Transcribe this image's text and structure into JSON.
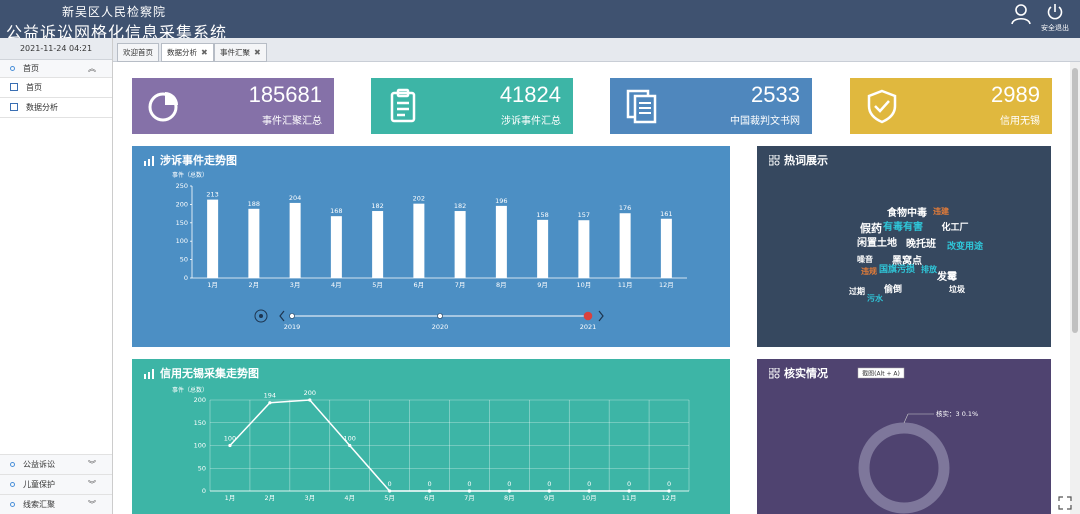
{
  "header": {
    "org": "新吴区人民检察院",
    "title": "公益诉讼网格化信息采集系统",
    "logout_label": "安全退出"
  },
  "sidebar": {
    "datetime": "2021-11-24 04:21",
    "top_section": "首页",
    "items": [
      "首页",
      "数据分析"
    ],
    "bottom_sections": [
      "公益诉讼",
      "儿童保护",
      "线索汇聚"
    ]
  },
  "tabs": [
    "欢迎首页",
    "数据分析",
    "事件汇聚"
  ],
  "stats": [
    {
      "value": "185681",
      "label": "事件汇聚汇总",
      "color": "#8571a8",
      "icon": "pie-chart-icon"
    },
    {
      "value": "41824",
      "label": "涉诉事件汇总",
      "color": "#3db5a6",
      "icon": "clipboard-icon"
    },
    {
      "value": "2533",
      "label": "中国裁判文书网",
      "color": "#4f87bd",
      "icon": "documents-icon"
    },
    {
      "value": "2989",
      "label": "信用无锡",
      "color": "#e0b83e",
      "icon": "shield-check-icon"
    }
  ],
  "panels": {
    "lawsuit_title": "涉诉事件走势图",
    "credit_title": "信用无锡采集走势图",
    "hotwords_title": "热词展示",
    "verify_title": "核实情况"
  },
  "chart_data": [
    {
      "type": "bar",
      "title": "涉诉事件走势图",
      "ylabel": "事件（总数）",
      "categories": [
        "1月",
        "2月",
        "3月",
        "4月",
        "5月",
        "6月",
        "7月",
        "8月",
        "9月",
        "10月",
        "11月",
        "12月"
      ],
      "values": [
        213,
        188,
        204,
        168,
        182,
        202,
        182,
        196,
        158,
        157,
        176,
        161
      ],
      "ylim": [
        0,
        250
      ],
      "yticks": [
        0,
        50,
        100,
        150,
        200,
        250
      ],
      "timeline": {
        "years": [
          "2019",
          "2020",
          "2021"
        ],
        "selected": "2021"
      },
      "grid": false
    },
    {
      "type": "line",
      "title": "信用无锡采集走势图",
      "ylabel": "事件（总数）",
      "categories": [
        "1月",
        "2月",
        "3月",
        "4月",
        "5月",
        "6月",
        "7月",
        "8月",
        "9月",
        "10月",
        "11月",
        "12月"
      ],
      "values": [
        100,
        194,
        200,
        100,
        0,
        0,
        0,
        0,
        0,
        0,
        0,
        0
      ],
      "ylim": [
        0,
        200
      ],
      "yticks": [
        0,
        50,
        100,
        150,
        200
      ],
      "grid": true
    },
    {
      "type": "pie",
      "title": "核实情况",
      "slices": [
        {
          "label": "核实",
          "value": 3,
          "percent": "0.1%"
        }
      ],
      "tooltip": "截图(Alt + A)"
    }
  ],
  "hotwords": [
    {
      "text": "假药",
      "color": "#ffffff",
      "size": 11
    },
    {
      "text": "食物中毒",
      "color": "#ffffff",
      "size": 10
    },
    {
      "text": "有毒有害",
      "color": "#2fc6d8",
      "size": 10
    },
    {
      "text": "化工厂",
      "color": "#ffffff",
      "size": 9
    },
    {
      "text": "闲置土地",
      "color": "#ffffff",
      "size": 10
    },
    {
      "text": "晚托班",
      "color": "#ffffff",
      "size": 10
    },
    {
      "text": "黑窝点",
      "color": "#ffffff",
      "size": 10
    },
    {
      "text": "改变用途",
      "color": "#2fc6d8",
      "size": 9
    },
    {
      "text": "国旗污损",
      "color": "#2fc6d8",
      "size": 9
    },
    {
      "text": "发霉",
      "color": "#ffffff",
      "size": 10
    },
    {
      "text": "偷倒",
      "color": "#ffffff",
      "size": 9
    },
    {
      "text": "违规",
      "color": "#e07b39",
      "size": 8
    },
    {
      "text": "过期",
      "color": "#ffffff",
      "size": 8
    },
    {
      "text": "污水",
      "color": "#2fc6d8",
      "size": 8
    },
    {
      "text": "垃圾",
      "color": "#ffffff",
      "size": 8
    },
    {
      "text": "噪音",
      "color": "#ffffff",
      "size": 8
    },
    {
      "text": "违建",
      "color": "#e07b39",
      "size": 8
    },
    {
      "text": "排放",
      "color": "#2fc6d8",
      "size": 8
    }
  ],
  "colors": {
    "lawsuit_panel": "#4c8fc4",
    "credit_panel": "#3db5a6",
    "hotwords_panel": "#36485f",
    "verify_panel": "#4f4370"
  }
}
